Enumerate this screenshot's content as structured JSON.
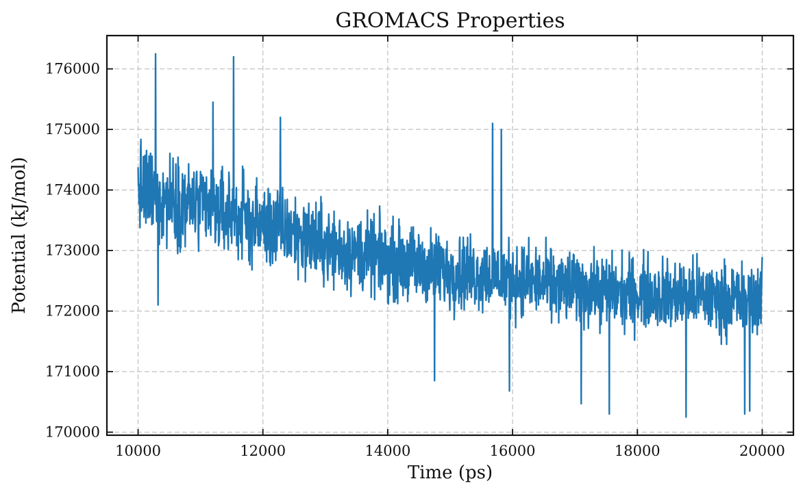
{
  "chart_data": {
    "type": "line",
    "title": "GROMACS Properties",
    "xlabel": "Time (ps)",
    "ylabel": "Potential (kJ/mol)",
    "xlim": [
      9500,
      20500
    ],
    "ylim": [
      169950,
      176550
    ],
    "xticks": [
      10000,
      12000,
      14000,
      16000,
      18000,
      20000
    ],
    "yticks": [
      170000,
      171000,
      172000,
      173000,
      174000,
      175000,
      176000
    ],
    "xtick_labels": [
      "10000",
      "12000",
      "14000",
      "16000",
      "18000",
      "20000"
    ],
    "ytick_labels": [
      "170000",
      "171000",
      "172000",
      "173000",
      "174000",
      "175000",
      "176000"
    ],
    "grid": true,
    "legend": "none",
    "series": [
      {
        "color": "#1f77b4",
        "x": [
          10000,
          10250,
          10500,
          10750,
          11000,
          11250,
          11500,
          11750,
          12000,
          12250,
          12500,
          12750,
          13000,
          13250,
          13500,
          13750,
          14000,
          14250,
          14500,
          14750,
          15000,
          15250,
          15500,
          15750,
          16000,
          16250,
          16500,
          16750,
          17000,
          17250,
          17500,
          17750,
          18000,
          18250,
          18500,
          18750,
          19000,
          19250,
          19500,
          19750,
          20000
        ],
        "y": [
          174000,
          173900,
          173850,
          173800,
          173700,
          173650,
          173600,
          173500,
          173400,
          173350,
          173300,
          173200,
          173100,
          173000,
          172950,
          172900,
          172850,
          172800,
          172750,
          172700,
          172650,
          172650,
          172600,
          172600,
          172550,
          172500,
          172450,
          172400,
          172400,
          172350,
          172350,
          172300,
          172300,
          172300,
          172250,
          172250,
          172250,
          172200,
          172200,
          172200,
          172200
        ],
        "spread": [
          550,
          550,
          540,
          530,
          520,
          520,
          510,
          500,
          500,
          490,
          480,
          480,
          470,
          470,
          460,
          460,
          460,
          450,
          450,
          450,
          450,
          440,
          440,
          440,
          440,
          440,
          430,
          430,
          430,
          430,
          430,
          430,
          430,
          430,
          430,
          430,
          430,
          430,
          430,
          430,
          430
        ],
        "samples": 2001
      }
    ],
    "annotations": [
      {
        "x": 10280,
        "y": 176250
      },
      {
        "x": 11530,
        "y": 176200
      },
      {
        "x": 10320,
        "y": 172100
      },
      {
        "x": 14750,
        "y": 170850
      },
      {
        "x": 15950,
        "y": 170680
      },
      {
        "x": 17100,
        "y": 170470
      },
      {
        "x": 17550,
        "y": 170300
      },
      {
        "x": 18780,
        "y": 170250
      },
      {
        "x": 19720,
        "y": 170300
      },
      {
        "x": 19800,
        "y": 170350
      },
      {
        "x": 15680,
        "y": 175100
      },
      {
        "x": 15820,
        "y": 175000
      },
      {
        "x": 12280,
        "y": 175200
      },
      {
        "x": 11200,
        "y": 175450
      }
    ]
  }
}
